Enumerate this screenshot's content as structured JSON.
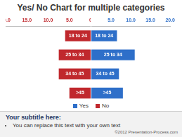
{
  "chart_data": {
    "type": "bar",
    "title": "Yes/ No Chart for multiple categories",
    "subtitle": "Your subtitle here:",
    "annotations": [
      "You can replace this text with your own text",
      "©2012 Presentation-Process.com"
    ],
    "orientation": "horizontal",
    "categories": [
      "18 to 24",
      "25 to 34",
      "34 to 45",
      ">45"
    ],
    "series": [
      {
        "name": "Yes",
        "color": "#2e6fc9",
        "values": [
          6.5,
          11,
          7,
          8
        ]
      },
      {
        "name": "No",
        "color": "#c0282d",
        "values": [
          6,
          7.5,
          7.5,
          5
        ]
      }
    ],
    "xlim": [
      0,
      20
    ],
    "xticks": [
      0,
      {
        "value": 5,
        "label": "5.0"
      },
      {
        "value": 10,
        "label": "10.0"
      },
      {
        "value": 15,
        "label": "15.0"
      },
      {
        "value": 20,
        "label": "20.0"
      }
    ],
    "grid": false,
    "legend": "bottom"
  }
}
